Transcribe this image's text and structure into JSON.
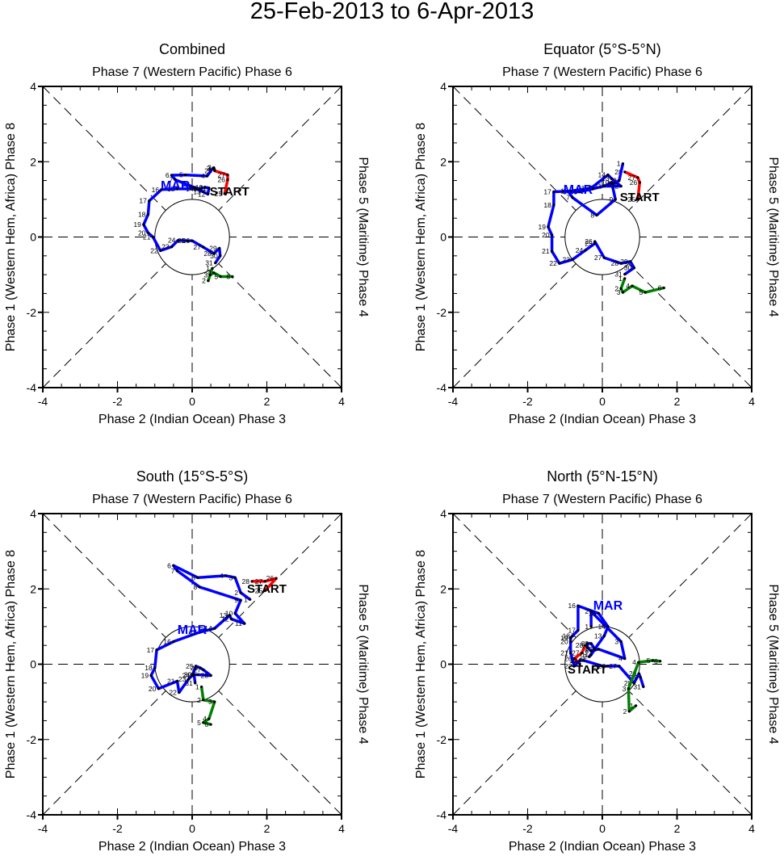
{
  "title": "25-Feb-2013 to 6-Apr-2013",
  "chart_data": [
    {
      "type": "line",
      "title": "Combined",
      "top_label": "Phase 7 (Western Pacific) Phase 6",
      "bottom_label": "Phase 2 (Indian Ocean) Phase 3",
      "left_label": "Phase 1 (Western Hem, Africa) Phase 8",
      "right_label": "Phase 5 (Maritime) Phase 4",
      "xlim": [
        -4,
        4
      ],
      "ylim": [
        -4,
        4
      ],
      "ticks": [
        "-4",
        "-2",
        "0",
        "2",
        "4"
      ],
      "start_label": "START",
      "start_at": [
        1.0,
        1.1
      ],
      "month_label": "MAR",
      "month_at": [
        -0.45,
        1.25
      ],
      "series": [
        {
          "name": "Feb",
          "color": "#ff0000",
          "labels": [
            "25",
            "26",
            "27",
            "28"
          ],
          "x": [
            0.87,
            0.95,
            0.95,
            0.6
          ],
          "y": [
            1.15,
            1.52,
            1.65,
            1.76
          ]
        },
        {
          "name": "Mar",
          "color": "#0000ff",
          "labels": [
            "1",
            "2",
            "3",
            "4",
            "5",
            "6",
            "7",
            "8",
            "9",
            "10",
            "11",
            "12",
            "13",
            "14",
            "15",
            "16",
            "17",
            "18",
            "19",
            "20",
            "21",
            "22",
            "23",
            "24",
            "25",
            "26",
            "27",
            "28",
            "29",
            "30",
            "31"
          ],
          "x": [
            0.6,
            0.58,
            0.55,
            0.4,
            -0.18,
            -0.55,
            -0.45,
            0.05,
            0.2,
            0.35,
            0.45,
            0.42,
            0.3,
            0.1,
            -0.4,
            -0.82,
            -1.15,
            -1.18,
            -1.3,
            -1.18,
            -1.05,
            -0.85,
            -0.55,
            -0.38,
            -0.12,
            0.0,
            0.3,
            0.58,
            0.73,
            0.75,
            0.62
          ],
          "y": [
            1.78,
            1.84,
            1.82,
            1.62,
            1.65,
            1.64,
            1.52,
            1.32,
            1.28,
            1.32,
            1.3,
            1.14,
            1.2,
            1.28,
            1.28,
            1.26,
            0.96,
            0.6,
            0.33,
            0.11,
            0.0,
            -0.36,
            -0.26,
            -0.09,
            -0.1,
            -0.1,
            -0.27,
            -0.44,
            -0.3,
            -0.5,
            -0.69
          ]
        },
        {
          "name": "Apr",
          "color": "#008000",
          "labels": [
            "1",
            "2",
            "3",
            "4",
            "5",
            "6"
          ],
          "x": [
            0.54,
            0.43,
            0.48,
            0.58,
            0.76,
            1.08
          ],
          "y": [
            -0.83,
            -1.16,
            -1.01,
            -0.95,
            -1.05,
            -1.05
          ]
        }
      ]
    },
    {
      "type": "line",
      "title": "Equator (5°S-5°N)",
      "top_label": "Phase 7 (Western Pacific) Phase 6",
      "bottom_label": "Phase 2 (Indian Ocean) Phase 3",
      "left_label": "Phase 1 (Western Hem, Africa) Phase 8",
      "right_label": "Phase 5 (Maritime) Phase 4",
      "xlim": [
        -4,
        4
      ],
      "ylim": [
        -4,
        4
      ],
      "ticks": [
        "-4",
        "-2",
        "0",
        "2",
        "4"
      ],
      "start_label": "START",
      "start_at": [
        1.0,
        0.95
      ],
      "month_label": "MAR",
      "month_at": [
        -0.65,
        1.15
      ],
      "series": [
        {
          "name": "Feb",
          "color": "#ff0000",
          "labels": [
            "25",
            "26",
            "27",
            "28"
          ],
          "x": [
            0.95,
            1.0,
            0.95,
            0.6
          ],
          "y": [
            1.0,
            1.45,
            1.58,
            1.73
          ]
        },
        {
          "name": "Mar",
          "color": "#0000ff",
          "labels": [
            "1",
            "2",
            "3",
            "4",
            "5",
            "6",
            "7",
            "8",
            "9",
            "10",
            "11",
            "12",
            "13",
            "14",
            "15",
            "16",
            "17",
            "18",
            "19",
            "20",
            "21",
            "22",
            "23",
            "24",
            "25",
            "26",
            "27",
            "28",
            "29",
            "30",
            "31"
          ],
          "x": [
            0.55,
            0.45,
            0.3,
            -0.25,
            -0.6,
            -0.9,
            -0.8,
            -0.15,
            0.35,
            0.25,
            0.05,
            0.5,
            0.25,
            0.15,
            -0.3,
            -0.85,
            -1.3,
            -1.3,
            -1.45,
            -1.35,
            -1.35,
            -1.15,
            -0.8,
            -0.45,
            -0.2,
            -0.2,
            0.05,
            0.5,
            0.75,
            0.85,
            0.6
          ],
          "y": [
            1.95,
            1.5,
            1.42,
            1.28,
            1.2,
            1.2,
            1.05,
            0.58,
            1.0,
            1.45,
            1.35,
            1.35,
            1.55,
            1.65,
            1.3,
            1.22,
            1.2,
            0.85,
            0.27,
            0.05,
            -0.38,
            -0.7,
            -0.6,
            -0.35,
            -0.17,
            -0.12,
            -0.55,
            -0.7,
            -0.65,
            -0.82,
            -0.99
          ]
        },
        {
          "name": "Apr",
          "color": "#008000",
          "labels": [
            "1",
            "2",
            "3",
            "4",
            "5",
            "6"
          ],
          "x": [
            0.6,
            0.5,
            0.55,
            0.8,
            1.15,
            1.65
          ],
          "y": [
            -1.1,
            -1.37,
            -1.47,
            -1.3,
            -1.47,
            -1.35
          ]
        }
      ]
    },
    {
      "type": "line",
      "title": "South (15°S-5°S)",
      "top_label": "Phase 7 (Western Pacific) Phase 6",
      "bottom_label": "Phase 2 (Indian Ocean) Phase 3",
      "left_label": "Phase 1 (Western Hem, Africa) Phase 8",
      "right_label": "Phase 5 (Maritime) Phase 4",
      "xlim": [
        -4,
        4
      ],
      "ylim": [
        -4,
        4
      ],
      "ticks": [
        "-4",
        "-2",
        "0",
        "2",
        "4"
      ],
      "start_label": "START",
      "start_at": [
        2.0,
        1.9
      ],
      "month_label": "MAR",
      "month_at": [
        0.0,
        0.8
      ],
      "series": [
        {
          "name": "Feb",
          "color": "#ff0000",
          "labels": [
            "25",
            "26",
            "27",
            "28"
          ],
          "x": [
            1.95,
            2.25,
            1.95,
            1.6
          ],
          "y": [
            1.95,
            2.28,
            2.2,
            2.2
          ]
        },
        {
          "name": "Mar",
          "color": "#0000ff",
          "labels": [
            "1",
            "2",
            "3",
            "4",
            "5",
            "6",
            "7",
            "8",
            "9",
            "10",
            "11",
            "12",
            "13",
            "14",
            "15",
            "16",
            "17",
            "18",
            "19",
            "20",
            "21",
            "22",
            "23",
            "24",
            "25",
            "26",
            "27",
            "28",
            "29",
            "30",
            "31"
          ],
          "x": [
            1.55,
            1.3,
            1.15,
            0.9,
            0.15,
            -0.5,
            -0.4,
            0.2,
            1.3,
            1.15,
            1.4,
            1.05,
            1.0,
            0.6,
            0.2,
            -0.5,
            -0.95,
            -1.0,
            -1.1,
            -0.9,
            -0.4,
            -0.35,
            -0.1,
            0.0,
            0.1,
            0.22,
            0.3,
            0.5,
            0.15,
            0.05,
            0.08
          ],
          "y": [
            1.72,
            1.9,
            2.3,
            2.35,
            2.3,
            2.62,
            2.48,
            2.05,
            1.7,
            1.35,
            1.08,
            1.2,
            1.3,
            0.95,
            0.85,
            0.6,
            0.38,
            -0.1,
            -0.3,
            -0.65,
            -0.45,
            -0.75,
            -0.4,
            -0.3,
            -0.05,
            -0.1,
            -0.15,
            -0.3,
            -0.28,
            -0.28,
            -0.5
          ]
        },
        {
          "name": "Apr",
          "color": "#008000",
          "labels": [
            "1",
            "2",
            "3",
            "4",
            "5",
            "6"
          ],
          "x": [
            0.25,
            0.3,
            0.6,
            0.45,
            0.3,
            0.5
          ],
          "y": [
            -0.6,
            -0.95,
            -1.0,
            -1.45,
            -1.55,
            -1.6
          ]
        }
      ]
    },
    {
      "type": "line",
      "title": "North (5°N-15°N)",
      "top_label": "Phase 7 (Western Pacific) Phase 6",
      "bottom_label": "Phase 2 (Indian Ocean) Phase 3",
      "left_label": "Phase 1 (Western Hem, Africa) Phase 8",
      "right_label": "Phase 5 (Maritime) Phase 4",
      "xlim": [
        -4,
        4
      ],
      "ylim": [
        -4,
        4
      ],
      "ticks": [
        "-4",
        "-2",
        "0",
        "2",
        "4"
      ],
      "start_label": "START",
      "start_at": [
        -0.4,
        -0.25
      ],
      "month_label": "MAR",
      "month_at": [
        0.15,
        1.45
      ],
      "series": [
        {
          "name": "Feb",
          "color": "#ff0000",
          "labels": [
            "25",
            "26",
            "27",
            "28"
          ],
          "x": [
            -0.6,
            -0.75,
            -0.55,
            -0.45
          ],
          "y": [
            0.0,
            0.15,
            0.3,
            0.5
          ]
        },
        {
          "name": "Mar",
          "color": "#0000ff",
          "labels": [
            "1",
            "2",
            "3",
            "4",
            "5",
            "6",
            "7",
            "8",
            "9",
            "10",
            "11",
            "12",
            "13",
            "14",
            "15",
            "16",
            "17",
            "18",
            "19",
            "20",
            "21",
            "22",
            "23",
            "24",
            "25",
            "26",
            "27",
            "28",
            "29",
            "30",
            "31"
          ],
          "x": [
            -0.3,
            -0.3,
            0.5,
            0.6,
            -0.1,
            -0.3,
            -0.4,
            -0.4,
            -0.3,
            -0.2,
            -0.3,
            -0.35,
            0.05,
            0.15,
            -0.1,
            -0.65,
            -0.65,
            -0.8,
            -0.85,
            -0.85,
            -0.85,
            -0.75,
            -0.6,
            -0.5,
            0.0,
            0.15,
            0.45,
            0.85,
            0.98,
            1.02,
            1.1
          ],
          "y": [
            1.0,
            1.4,
            0.6,
            0.15,
            0.4,
            0.35,
            0.45,
            0.55,
            0.55,
            0.4,
            0.25,
            0.2,
            0.75,
            1.0,
            1.35,
            1.55,
            0.9,
            0.75,
            0.7,
            0.6,
            0.3,
            -0.05,
            0.1,
            0.1,
            -0.05,
            -0.05,
            -0.05,
            -0.5,
            -0.25,
            -0.35,
            -0.6
          ]
        },
        {
          "name": "Apr",
          "color": "#008000",
          "labels": [
            "1",
            "2",
            "3",
            "4",
            "5",
            "6"
          ],
          "x": [
            0.9,
            0.72,
            0.7,
            0.97,
            1.35,
            1.55
          ],
          "y": [
            -1.1,
            -1.25,
            -0.65,
            0.05,
            0.1,
            0.08
          ]
        }
      ]
    }
  ]
}
